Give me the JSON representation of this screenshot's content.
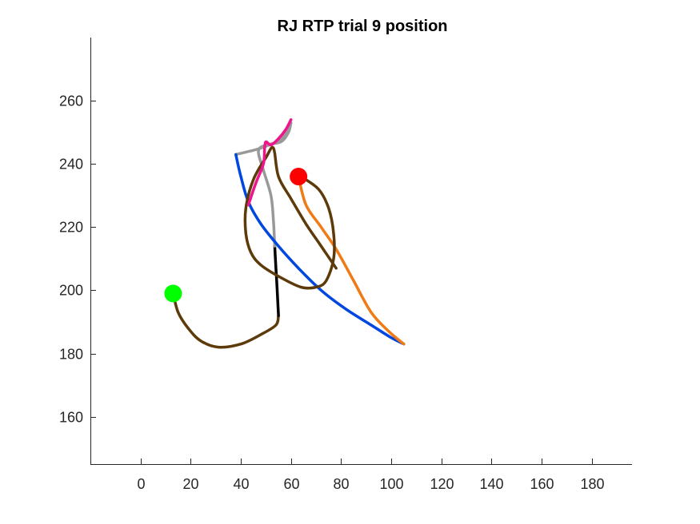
{
  "chart_data": {
    "type": "line",
    "title": "RJ  RTP trial 9 position",
    "xlabel": "",
    "ylabel": "",
    "xlim": [
      -20,
      196
    ],
    "ylim": [
      145,
      280
    ],
    "xticks": [
      0,
      20,
      40,
      60,
      80,
      100,
      120,
      140,
      160,
      180
    ],
    "yticks": [
      160,
      180,
      200,
      220,
      240,
      260
    ],
    "grid": false,
    "axes_box": "left-bottom",
    "series": [
      {
        "color": "#5c3a0a",
        "points": [
          [
            13,
            199
          ],
          [
            15,
            193
          ],
          [
            19,
            188
          ],
          [
            24,
            184
          ],
          [
            31,
            182
          ],
          [
            40,
            183
          ],
          [
            48,
            186
          ],
          [
            54,
            189
          ],
          [
            55,
            192
          ]
        ]
      },
      {
        "color": "#000000",
        "points": [
          [
            55,
            192
          ],
          [
            54.5,
            200
          ],
          [
            54,
            207
          ],
          [
            53.5,
            214
          ]
        ]
      },
      {
        "color": "#999999",
        "points": [
          [
            53.5,
            214
          ],
          [
            53,
            222
          ],
          [
            52,
            230
          ],
          [
            49,
            238
          ],
          [
            47,
            244
          ],
          [
            50,
            246
          ],
          [
            56,
            247
          ],
          [
            59,
            250
          ],
          [
            60,
            253
          ]
        ]
      },
      {
        "color": "#999999",
        "points": [
          [
            60,
            253
          ],
          [
            56,
            248
          ],
          [
            48,
            245
          ],
          [
            38,
            243
          ]
        ]
      },
      {
        "color": "#0047e0",
        "points": [
          [
            38,
            243
          ],
          [
            40,
            236
          ],
          [
            43,
            228
          ],
          [
            48,
            221
          ],
          [
            55,
            214
          ],
          [
            63,
            207
          ],
          [
            72,
            200
          ],
          [
            82,
            194
          ],
          [
            92,
            189
          ],
          [
            100,
            185
          ],
          [
            105,
            183
          ]
        ]
      },
      {
        "color": "#f07b16",
        "points": [
          [
            105,
            183
          ],
          [
            99,
            187
          ],
          [
            92,
            193
          ],
          [
            85,
            203
          ],
          [
            78,
            213
          ],
          [
            72,
            220
          ],
          [
            66,
            227
          ],
          [
            63,
            236
          ]
        ]
      },
      {
        "color": "#5c3a0a",
        "points": [
          [
            78,
            207
          ],
          [
            72,
            214
          ],
          [
            66,
            221
          ],
          [
            60,
            229
          ],
          [
            55,
            236
          ],
          [
            53,
            245
          ],
          [
            50,
            242
          ],
          [
            45,
            235
          ],
          [
            42,
            226
          ],
          [
            42,
            218
          ],
          [
            44,
            212
          ],
          [
            48,
            208
          ],
          [
            56,
            204
          ],
          [
            64,
            201
          ],
          [
            70,
            201
          ],
          [
            74,
            203
          ],
          [
            77,
            210
          ],
          [
            77,
            218
          ],
          [
            75,
            226
          ],
          [
            71,
            232
          ],
          [
            64,
            236
          ]
        ]
      },
      {
        "color": "#f0148c",
        "points": [
          [
            43,
            227
          ],
          [
            46,
            234
          ],
          [
            49,
            240
          ],
          [
            49.5,
            245
          ],
          [
            50,
            247
          ],
          [
            52,
            246
          ],
          [
            55,
            248
          ],
          [
            58,
            251
          ],
          [
            60,
            254
          ]
        ]
      }
    ],
    "markers": [
      {
        "name": "start",
        "x": 13,
        "y": 199,
        "color": "#00ff00"
      },
      {
        "name": "end",
        "x": 63,
        "y": 236,
        "color": "#ff0000"
      }
    ]
  }
}
